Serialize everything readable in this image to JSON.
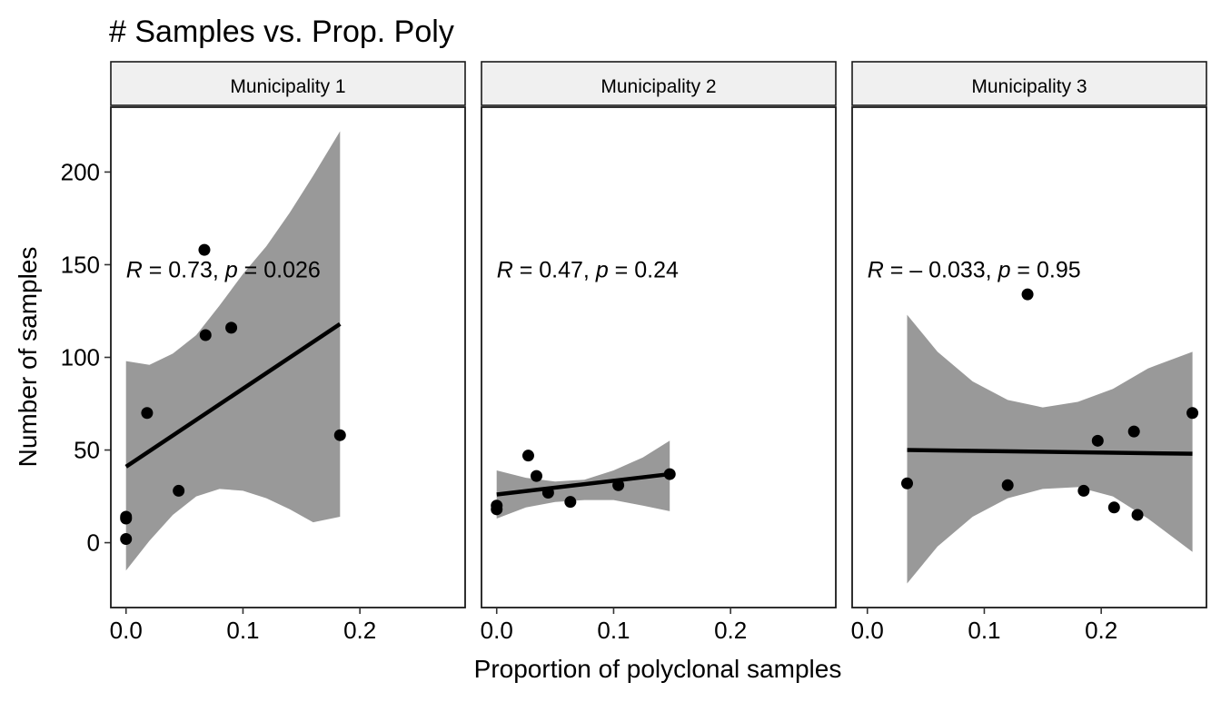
{
  "chart_data": {
    "type": "scatter",
    "title": "# Samples vs. Prop. Poly",
    "xlabel": "Proportion of polyclonal samples",
    "ylabel": "Number of samples",
    "xlim": [
      -0.013,
      0.29
    ],
    "ylim": [
      -35,
      235
    ],
    "x_ticks": [
      0.0,
      0.1,
      0.2
    ],
    "x_tick_labels": [
      "0.0",
      "0.1",
      "0.2"
    ],
    "y_ticks": [
      0,
      50,
      100,
      150,
      200
    ],
    "y_tick_labels": [
      "0",
      "50",
      "100",
      "150",
      "200"
    ],
    "grid": false,
    "style": {
      "point_color": "#000000",
      "line_color": "#000000",
      "band_color": "#999999",
      "strip_fill": "#f0f0f0"
    },
    "panels": [
      {
        "strip": "Municipality 1",
        "stat": {
          "r_symbol": "R",
          "r_value": " = 0.73, ",
          "p_symbol": "p",
          "p_value": " = 0.026"
        },
        "points": [
          [
            0.0,
            2
          ],
          [
            0.0,
            13
          ],
          [
            0.0,
            14
          ],
          [
            0.018,
            70
          ],
          [
            0.045,
            28
          ],
          [
            0.067,
            158
          ],
          [
            0.068,
            112
          ],
          [
            0.09,
            116
          ],
          [
            0.183,
            58
          ]
        ],
        "fit": {
          "x": [
            0.0,
            0.183
          ],
          "y": [
            41,
            118
          ]
        },
        "band": {
          "x": [
            0.0,
            0.02,
            0.04,
            0.06,
            0.08,
            0.1,
            0.12,
            0.14,
            0.16,
            0.183
          ],
          "lower": [
            -15,
            1,
            15,
            25,
            29,
            28,
            24,
            18,
            11,
            14
          ],
          "upper": [
            98,
            96,
            102,
            112,
            128,
            145,
            160,
            178,
            198,
            222
          ]
        }
      },
      {
        "strip": "Municipality 2",
        "stat": {
          "r_symbol": "R",
          "r_value": " = 0.47, ",
          "p_symbol": "p",
          "p_value": " = 0.24"
        },
        "points": [
          [
            0.0,
            18
          ],
          [
            0.0,
            20
          ],
          [
            0.027,
            47
          ],
          [
            0.034,
            36
          ],
          [
            0.044,
            27
          ],
          [
            0.063,
            22
          ],
          [
            0.104,
            31
          ],
          [
            0.148,
            37
          ]
        ],
        "fit": {
          "x": [
            0.0,
            0.148
          ],
          "y": [
            26,
            37
          ]
        },
        "band": {
          "x": [
            0.0,
            0.025,
            0.05,
            0.075,
            0.1,
            0.125,
            0.148
          ],
          "lower": [
            13,
            19,
            22,
            23,
            23,
            20,
            17
          ],
          "upper": [
            39,
            35,
            33,
            34,
            39,
            46,
            55
          ]
        }
      },
      {
        "strip": "Municipality 3",
        "stat": {
          "r_symbol": "R",
          "r_value": " = – 0.033, ",
          "p_symbol": "p",
          "p_value": " = 0.95"
        },
        "points": [
          [
            0.034,
            32
          ],
          [
            0.12,
            31
          ],
          [
            0.137,
            134
          ],
          [
            0.185,
            28
          ],
          [
            0.197,
            55
          ],
          [
            0.211,
            19
          ],
          [
            0.228,
            60
          ],
          [
            0.231,
            15
          ],
          [
            0.278,
            70
          ]
        ],
        "fit": {
          "x": [
            0.034,
            0.278
          ],
          "y": [
            50,
            48
          ]
        },
        "band": {
          "x": [
            0.034,
            0.06,
            0.09,
            0.12,
            0.15,
            0.18,
            0.21,
            0.24,
            0.278
          ],
          "lower": [
            -22,
            -2,
            14,
            24,
            29,
            30,
            25,
            13,
            -5
          ],
          "upper": [
            123,
            103,
            87,
            77,
            73,
            76,
            83,
            94,
            103
          ]
        }
      }
    ]
  }
}
